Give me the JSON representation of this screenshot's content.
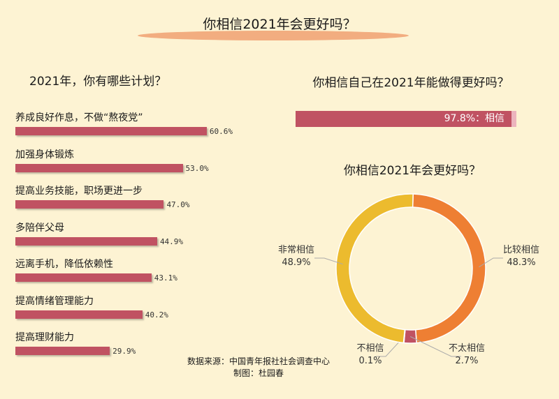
{
  "title": "你相信2021年会更好吗？",
  "source": "数据来源：中国青年报社社会调查中心",
  "credit": "制图：杜园春",
  "chart_data": [
    {
      "type": "bar",
      "orientation": "horizontal",
      "title": "2021年，你有哪些计划？",
      "categories": [
        "养成良好作息，不做“熬夜党”",
        "加强身体锻炼",
        "提高业务技能，职场更进一步",
        "多陪伴父母",
        "远离手机，降低依赖性",
        "提高情绪管理能力",
        "提高理财能力"
      ],
      "values": [
        60.6,
        53.0,
        47.0,
        44.9,
        43.1,
        40.2,
        29.9
      ],
      "labels": [
        "60.6%",
        "53.0%",
        "47.0%",
        "44.9%",
        "43.1%",
        "40.2%",
        "29.9%"
      ],
      "color": "#c05262"
    },
    {
      "type": "bar",
      "title": "你相信自己在2021年能做得更好吗？",
      "categories": [
        "相信"
      ],
      "values": [
        97.8
      ],
      "label": "97.8%：相信",
      "colors": [
        "#c05262",
        "#ecb4bd"
      ]
    },
    {
      "type": "pie",
      "donut": true,
      "title": "你相信2021年会更好吗？",
      "slices": [
        {
          "name": "比较相信",
          "value": 48.3,
          "label": "48.3%",
          "color": "#ee7f33"
        },
        {
          "name": "不太相信",
          "value": 2.7,
          "label": "2.7%",
          "color": "#c05262"
        },
        {
          "name": "不相信",
          "value": 0.1,
          "label": "0.1%",
          "color": "#8a8a8a"
        },
        {
          "name": "非常相信",
          "value": 48.9,
          "label": "48.9%",
          "color": "#ecbb2e"
        }
      ]
    }
  ]
}
